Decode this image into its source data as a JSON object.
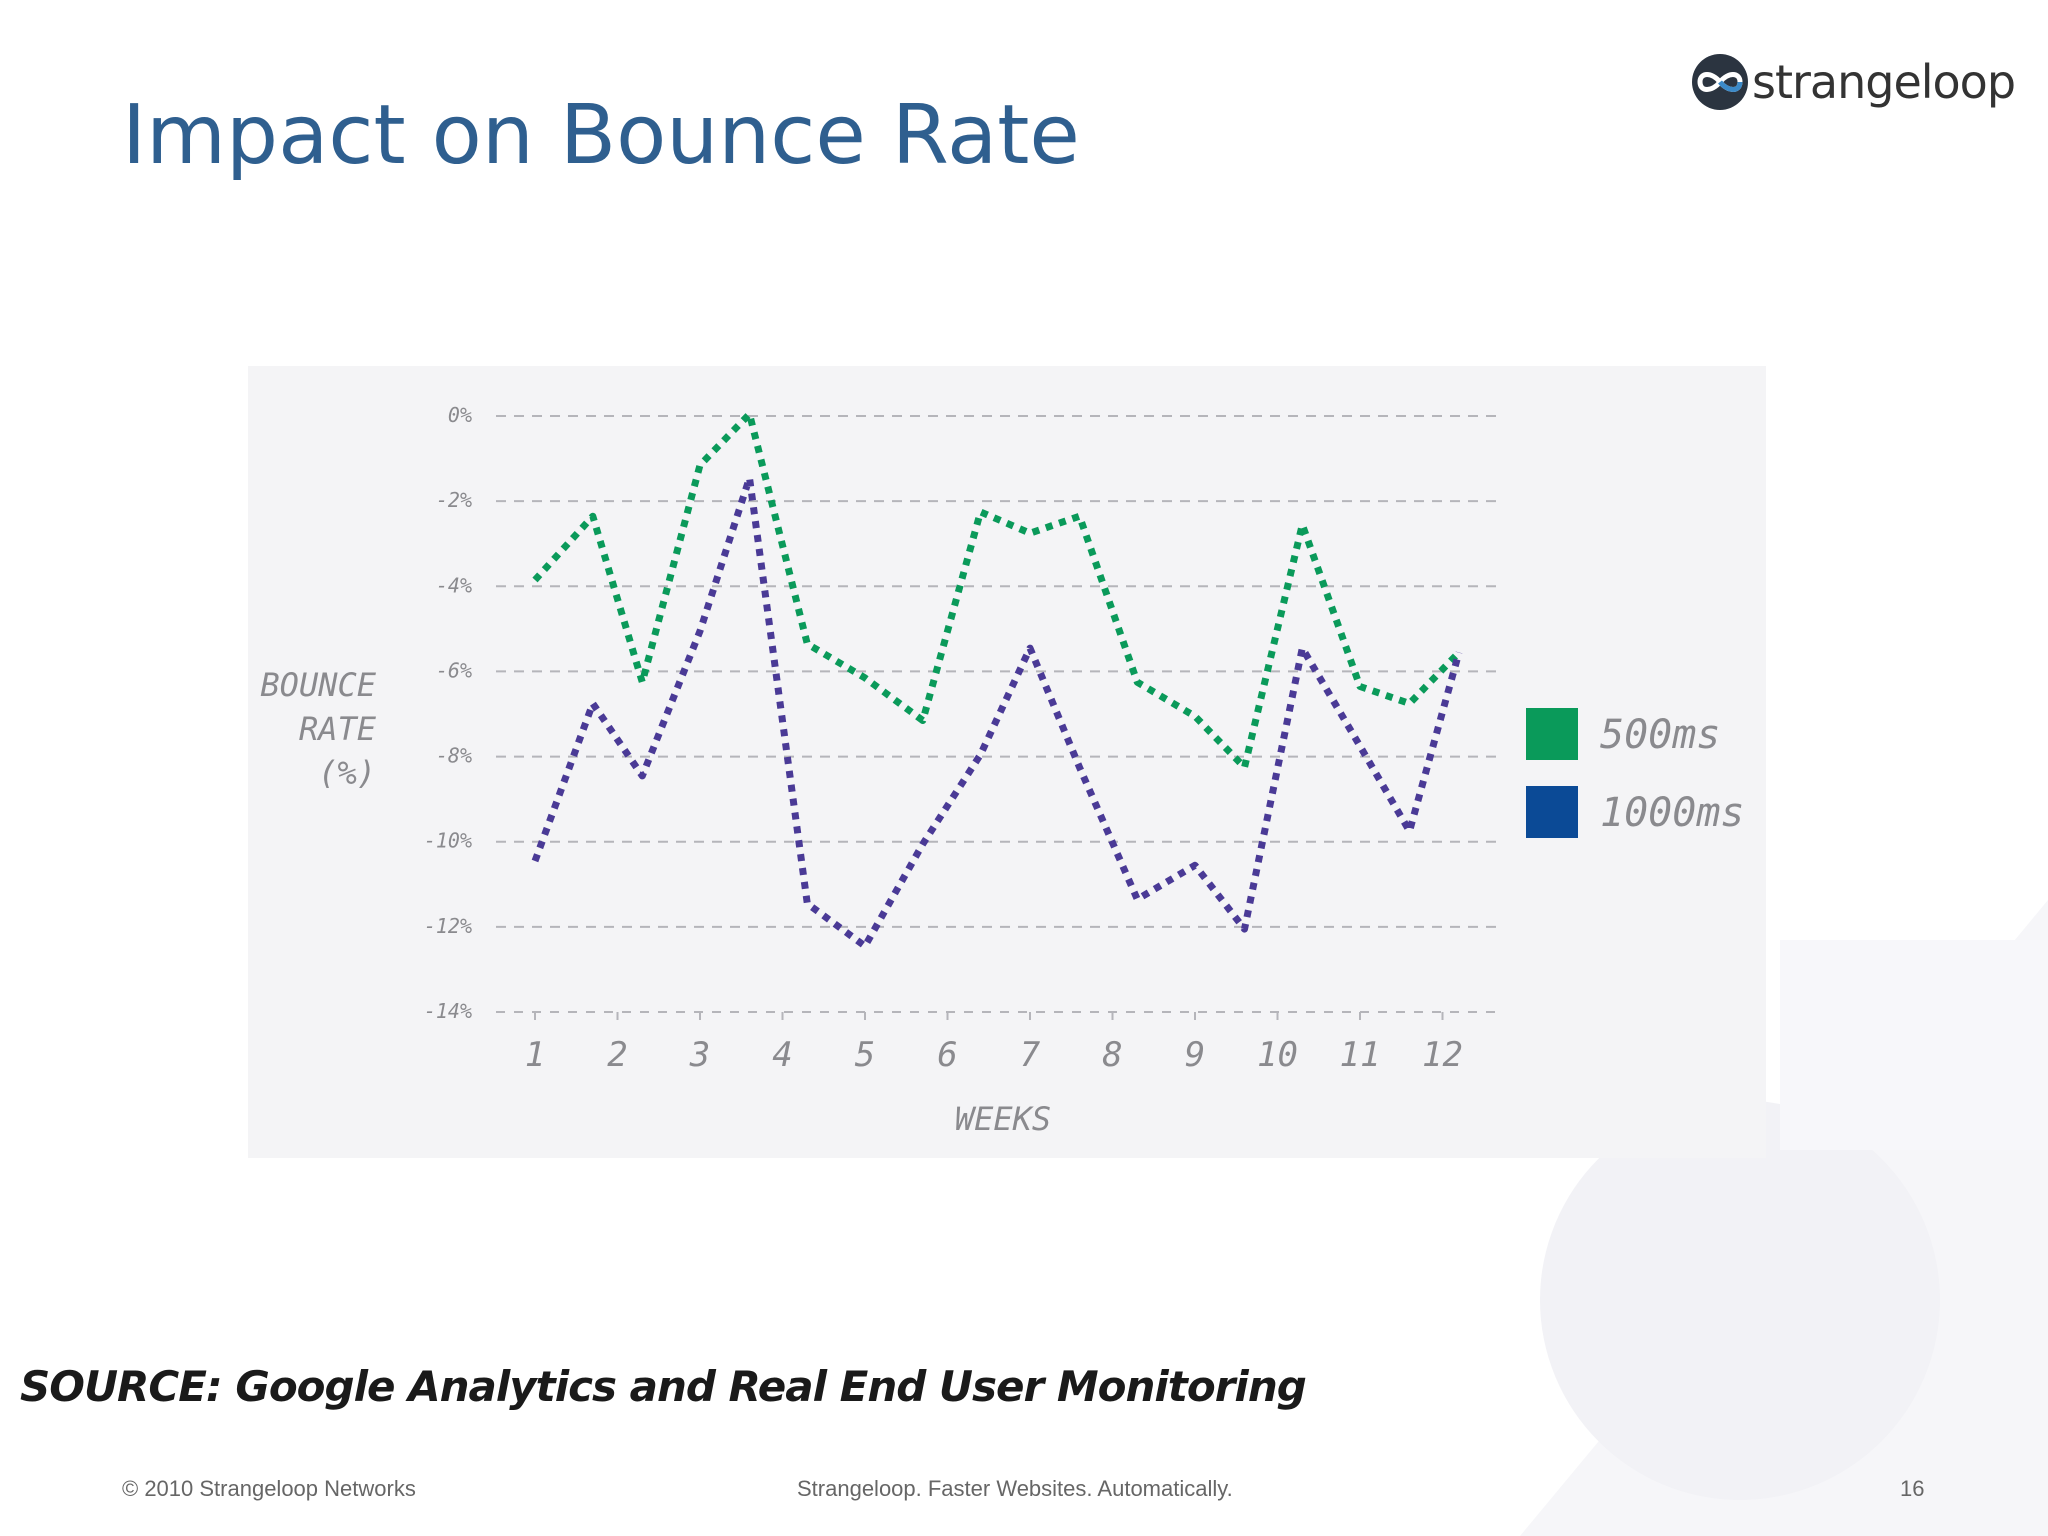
{
  "slide": {
    "title": "Impact on Bounce Rate",
    "logo_text": "strangeloop",
    "source_label": "SOURCE:",
    "source_text": "Google Analytics and Real End User Monitoring",
    "footer_left": "© 2010 Strangeloop Networks",
    "footer_center": "Strangeloop. Faster Websites. Automatically.",
    "page_number": "16",
    "title_color": "#2f5f8f"
  },
  "chart_data": {
    "type": "line",
    "x": [
      1,
      2,
      3,
      4,
      5,
      6,
      7,
      8,
      9,
      10,
      11,
      12
    ],
    "x_tick_labels": [
      "1",
      "2",
      "3",
      "4",
      "5",
      "6",
      "7",
      "8",
      "9",
      "10",
      "11",
      "12"
    ],
    "y_tick_labels": [
      "0%",
      "-2%",
      "-4%",
      "-6%",
      "-8%",
      "-10%",
      "-12%",
      "-14%"
    ],
    "y_ticks": [
      0,
      -2,
      -4,
      -6,
      -8,
      -10,
      -12,
      -14
    ],
    "ylim": [
      -14,
      0
    ],
    "xlabel": "WEEKS",
    "ylabel_lines": [
      "BOUNCE",
      "RATE",
      "(%)"
    ],
    "grid": true,
    "line_style": "dotted",
    "legend_position": "right",
    "series": [
      {
        "name": "500ms",
        "color": "#0a9a5a",
        "points": [
          {
            "x": 1,
            "y": -3.9
          },
          {
            "x": 1.7,
            "y": -2.4
          },
          {
            "x": 2.3,
            "y": -6.3
          },
          {
            "x": 3,
            "y": -1.2
          },
          {
            "x": 3.6,
            "y": 0
          },
          {
            "x": 4.3,
            "y": -5.4
          },
          {
            "x": 5,
            "y": -6.2
          },
          {
            "x": 5.7,
            "y": -7.2
          },
          {
            "x": 6.4,
            "y": -2.3
          },
          {
            "x": 7,
            "y": -2.8
          },
          {
            "x": 7.6,
            "y": -2.4
          },
          {
            "x": 8.3,
            "y": -6.3
          },
          {
            "x": 9,
            "y": -7.1
          },
          {
            "x": 9.6,
            "y": -8.3
          },
          {
            "x": 10.3,
            "y": -2.6
          },
          {
            "x": 11,
            "y": -6.4
          },
          {
            "x": 11.6,
            "y": -6.8
          },
          {
            "x": 12.2,
            "y": -5.6
          }
        ]
      },
      {
        "name": "1000ms",
        "color": "#4a3a96",
        "legend_color": "#0b4a96",
        "points": [
          {
            "x": 1,
            "y": -10.5
          },
          {
            "x": 1.7,
            "y": -6.8
          },
          {
            "x": 2.3,
            "y": -8.5
          },
          {
            "x": 3,
            "y": -5.1
          },
          {
            "x": 3.6,
            "y": -1.5
          },
          {
            "x": 4.3,
            "y": -11.5
          },
          {
            "x": 5,
            "y": -12.5
          },
          {
            "x": 5.7,
            "y": -10.1
          },
          {
            "x": 6.4,
            "y": -8.0
          },
          {
            "x": 7,
            "y": -5.5
          },
          {
            "x": 7.6,
            "y": -8.3
          },
          {
            "x": 8.3,
            "y": -11.4
          },
          {
            "x": 9,
            "y": -10.6
          },
          {
            "x": 9.6,
            "y": -12.1
          },
          {
            "x": 10.3,
            "y": -5.5
          },
          {
            "x": 11,
            "y": -7.8
          },
          {
            "x": 11.6,
            "y": -9.8
          },
          {
            "x": 12.2,
            "y": -5.6
          }
        ]
      }
    ]
  }
}
